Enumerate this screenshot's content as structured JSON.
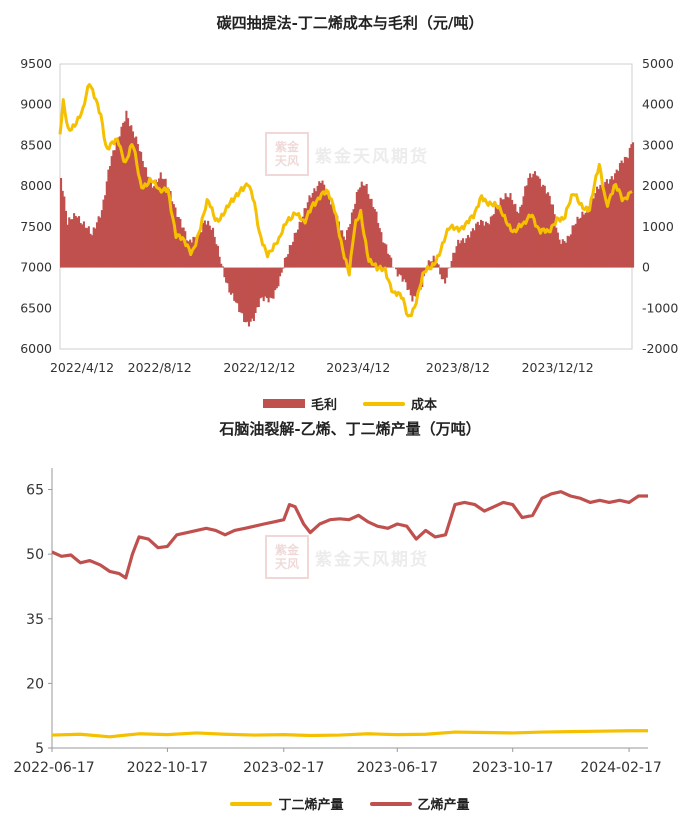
{
  "watermark": {
    "seal": "紫金天风",
    "text": "紫金天风期货"
  },
  "chart_data": [
    {
      "type": "bar+line",
      "title": "碳四抽提法-丁二烯成本与毛利（元/吨）",
      "x_ticks": [
        "2022/4/12",
        "2022/8/12",
        "2022/12/12",
        "2023/4/12",
        "2023/8/12",
        "2023/12/12"
      ],
      "x_range": [
        "2022-04-12",
        "2024-03-12"
      ],
      "left_axis": {
        "ylim": [
          6000,
          9500
        ],
        "ticks": [
          6000,
          6500,
          7000,
          7500,
          8000,
          8500,
          9000,
          9500
        ]
      },
      "right_axis": {
        "ylim": [
          -2000,
          5000
        ],
        "ticks": [
          -2000,
          -1000,
          0,
          1000,
          2000,
          3000,
          4000,
          5000
        ]
      },
      "legend": [
        "毛利",
        "成本"
      ],
      "series": [
        {
          "name": "毛利",
          "type": "bar",
          "axis": "right",
          "color": "#c0504d",
          "points": [
            [
              "2022-04-12",
              2200
            ],
            [
              "2022-04-20",
              1000
            ],
            [
              "2022-05-01",
              1400
            ],
            [
              "2022-05-10",
              1100
            ],
            [
              "2022-05-20",
              700
            ],
            [
              "2022-06-01",
              1500
            ],
            [
              "2022-06-10",
              2500
            ],
            [
              "2022-06-20",
              3000
            ],
            [
              "2022-07-01",
              3900
            ],
            [
              "2022-07-10",
              3300
            ],
            [
              "2022-07-20",
              2600
            ],
            [
              "2022-08-01",
              2100
            ],
            [
              "2022-08-12",
              2200
            ],
            [
              "2022-08-25",
              1800
            ],
            [
              "2022-09-05",
              1200
            ],
            [
              "2022-09-15",
              500
            ],
            [
              "2022-09-25",
              800
            ],
            [
              "2022-10-05",
              1200
            ],
            [
              "2022-10-15",
              800
            ],
            [
              "2022-10-25",
              200
            ],
            [
              "2022-11-05",
              -600
            ],
            [
              "2022-11-15",
              -1100
            ],
            [
              "2022-11-25",
              -1300
            ],
            [
              "2022-12-05",
              -1200
            ],
            [
              "2022-12-12",
              -900
            ],
            [
              "2022-12-25",
              -700
            ],
            [
              "2023-01-05",
              -300
            ],
            [
              "2023-01-15",
              300
            ],
            [
              "2023-01-25",
              1000
            ],
            [
              "2023-02-05",
              1400
            ],
            [
              "2023-02-15",
              1800
            ],
            [
              "2023-02-25",
              2300
            ],
            [
              "2023-03-05",
              1700
            ],
            [
              "2023-03-15",
              1200
            ],
            [
              "2023-03-25",
              800
            ],
            [
              "2023-04-05",
              1400
            ],
            [
              "2023-04-12",
              1900
            ],
            [
              "2023-04-20",
              2100
            ],
            [
              "2023-05-01",
              1500
            ],
            [
              "2023-05-10",
              600
            ],
            [
              "2023-05-20",
              300
            ],
            [
              "2023-06-01",
              -200
            ],
            [
              "2023-06-15",
              -800
            ],
            [
              "2023-06-25",
              -500
            ],
            [
              "2023-07-05",
              0
            ],
            [
              "2023-07-15",
              200
            ],
            [
              "2023-07-25",
              -300
            ],
            [
              "2023-08-05",
              200
            ],
            [
              "2023-08-12",
              600
            ],
            [
              "2023-08-25",
              900
            ],
            [
              "2023-09-05",
              1000
            ],
            [
              "2023-09-15",
              1100
            ],
            [
              "2023-09-25",
              1500
            ],
            [
              "2023-10-05",
              1600
            ],
            [
              "2023-10-15",
              1800
            ],
            [
              "2023-10-25",
              1400
            ],
            [
              "2023-11-05",
              2100
            ],
            [
              "2023-11-15",
              2400
            ],
            [
              "2023-11-25",
              2000
            ],
            [
              "2023-12-05",
              1400
            ],
            [
              "2023-12-12",
              700
            ],
            [
              "2023-12-25",
              800
            ],
            [
              "2024-01-05",
              1100
            ],
            [
              "2024-01-15",
              1500
            ],
            [
              "2024-01-25",
              1800
            ],
            [
              "2024-02-05",
              2000
            ],
            [
              "2024-02-15",
              2300
            ],
            [
              "2024-02-25",
              2500
            ],
            [
              "2024-03-05",
              2600
            ],
            [
              "2024-03-12",
              3200
            ]
          ]
        },
        {
          "name": "成本",
          "type": "line",
          "axis": "left",
          "color": "#f5c000",
          "points": [
            [
              "2022-04-12",
              8600
            ],
            [
              "2022-04-16",
              9000
            ],
            [
              "2022-04-22",
              8700
            ],
            [
              "2022-05-01",
              8800
            ],
            [
              "2022-05-10",
              8900
            ],
            [
              "2022-05-18",
              9250
            ],
            [
              "2022-05-26",
              9100
            ],
            [
              "2022-06-01",
              8900
            ],
            [
              "2022-06-08",
              8400
            ],
            [
              "2022-06-15",
              8500
            ],
            [
              "2022-06-22",
              8600
            ],
            [
              "2022-07-01",
              8300
            ],
            [
              "2022-07-10",
              8500
            ],
            [
              "2022-07-20",
              8000
            ],
            [
              "2022-08-01",
              8100
            ],
            [
              "2022-08-12",
              7900
            ],
            [
              "2022-08-22",
              8000
            ],
            [
              "2022-09-01",
              7400
            ],
            [
              "2022-09-10",
              7300
            ],
            [
              "2022-09-20",
              7200
            ],
            [
              "2022-10-01",
              7500
            ],
            [
              "2022-10-10",
              7800
            ],
            [
              "2022-10-20",
              7600
            ],
            [
              "2022-11-01",
              7700
            ],
            [
              "2022-11-10",
              7800
            ],
            [
              "2022-11-20",
              8000
            ],
            [
              "2022-11-28",
              8050
            ],
            [
              "2022-12-05",
              7800
            ],
            [
              "2022-12-12",
              7400
            ],
            [
              "2022-12-22",
              7200
            ],
            [
              "2023-01-05",
              7300
            ],
            [
              "2023-01-15",
              7600
            ],
            [
              "2023-01-25",
              7700
            ],
            [
              "2023-02-05",
              7500
            ],
            [
              "2023-02-15",
              7800
            ],
            [
              "2023-02-25",
              7900
            ],
            [
              "2023-03-05",
              7900
            ],
            [
              "2023-03-15",
              7700
            ],
            [
              "2023-03-25",
              7200
            ],
            [
              "2023-04-01",
              6900
            ],
            [
              "2023-04-08",
              7500
            ],
            [
              "2023-04-15",
              7700
            ],
            [
              "2023-04-25",
              7100
            ],
            [
              "2023-05-05",
              6950
            ],
            [
              "2023-05-15",
              7000
            ],
            [
              "2023-05-25",
              6700
            ],
            [
              "2023-06-05",
              6600
            ],
            [
              "2023-06-12",
              6400
            ],
            [
              "2023-06-20",
              6550
            ],
            [
              "2023-07-01",
              6900
            ],
            [
              "2023-07-10",
              7000
            ],
            [
              "2023-07-20",
              7200
            ],
            [
              "2023-08-01",
              7450
            ],
            [
              "2023-08-12",
              7500
            ],
            [
              "2023-08-22",
              7550
            ],
            [
              "2023-09-01",
              7600
            ],
            [
              "2023-09-10",
              7900
            ],
            [
              "2023-09-20",
              7800
            ],
            [
              "2023-10-01",
              7700
            ],
            [
              "2023-10-10",
              7600
            ],
            [
              "2023-10-20",
              7450
            ],
            [
              "2023-11-01",
              7500
            ],
            [
              "2023-11-10",
              7700
            ],
            [
              "2023-11-20",
              7450
            ],
            [
              "2023-12-01",
              7400
            ],
            [
              "2023-12-12",
              7650
            ],
            [
              "2023-12-20",
              7600
            ],
            [
              "2024-01-01",
              7900
            ],
            [
              "2024-01-10",
              7800
            ],
            [
              "2024-01-20",
              7700
            ],
            [
              "2024-02-01",
              8250
            ],
            [
              "2024-02-10",
              7800
            ],
            [
              "2024-02-20",
              8000
            ],
            [
              "2024-03-01",
              7800
            ],
            [
              "2024-03-12",
              8000
            ]
          ]
        }
      ]
    },
    {
      "type": "line",
      "title": "石脑油裂解-乙烯、丁二烯产量（万吨）",
      "x_ticks": [
        "2022-06-17",
        "2022-10-17",
        "2023-02-17",
        "2023-06-17",
        "2023-10-17",
        "2024-02-17"
      ],
      "x_range": [
        "2022-06-17",
        "2024-03-08"
      ],
      "ylim": [
        5,
        70
      ],
      "y_ticks": [
        5,
        20,
        35,
        50,
        65
      ],
      "legend": [
        "丁二烯产量",
        "乙烯产量"
      ],
      "series": [
        {
          "name": "乙烯产量",
          "color": "#c0504d",
          "points": [
            [
              "2022-06-17",
              50.5
            ],
            [
              "2022-06-27",
              49.5
            ],
            [
              "2022-07-07",
              49.8
            ],
            [
              "2022-07-17",
              48.0
            ],
            [
              "2022-07-27",
              48.5
            ],
            [
              "2022-08-07",
              47.5
            ],
            [
              "2022-08-17",
              46.0
            ],
            [
              "2022-08-27",
              45.5
            ],
            [
              "2022-09-03",
              44.5
            ],
            [
              "2022-09-10",
              50.0
            ],
            [
              "2022-09-17",
              54.0
            ],
            [
              "2022-09-27",
              53.5
            ],
            [
              "2022-10-07",
              51.5
            ],
            [
              "2022-10-17",
              51.8
            ],
            [
              "2022-10-27",
              54.5
            ],
            [
              "2022-11-07",
              55.0
            ],
            [
              "2022-11-17",
              55.5
            ],
            [
              "2022-11-27",
              56.0
            ],
            [
              "2022-12-07",
              55.5
            ],
            [
              "2022-12-17",
              54.5
            ],
            [
              "2022-12-27",
              55.5
            ],
            [
              "2023-01-07",
              56.0
            ],
            [
              "2023-01-17",
              56.5
            ],
            [
              "2023-01-27",
              57.0
            ],
            [
              "2023-02-07",
              57.5
            ],
            [
              "2023-02-17",
              58.0
            ],
            [
              "2023-02-23",
              61.5
            ],
            [
              "2023-03-01",
              61.0
            ],
            [
              "2023-03-10",
              57.0
            ],
            [
              "2023-03-17",
              55.0
            ],
            [
              "2023-03-27",
              57.0
            ],
            [
              "2023-04-07",
              58.0
            ],
            [
              "2023-04-17",
              58.2
            ],
            [
              "2023-04-27",
              58.0
            ],
            [
              "2023-05-07",
              59.0
            ],
            [
              "2023-05-17",
              57.5
            ],
            [
              "2023-05-27",
              56.5
            ],
            [
              "2023-06-07",
              56.0
            ],
            [
              "2023-06-17",
              57.0
            ],
            [
              "2023-06-27",
              56.5
            ],
            [
              "2023-07-07",
              53.5
            ],
            [
              "2023-07-17",
              55.5
            ],
            [
              "2023-07-27",
              54.0
            ],
            [
              "2023-08-07",
              54.5
            ],
            [
              "2023-08-17",
              61.5
            ],
            [
              "2023-08-27",
              62.0
            ],
            [
              "2023-09-07",
              61.5
            ],
            [
              "2023-09-17",
              60.0
            ],
            [
              "2023-09-27",
              61.0
            ],
            [
              "2023-10-07",
              62.0
            ],
            [
              "2023-10-17",
              61.5
            ],
            [
              "2023-10-27",
              58.5
            ],
            [
              "2023-11-07",
              59.0
            ],
            [
              "2023-11-17",
              63.0
            ],
            [
              "2023-11-27",
              64.0
            ],
            [
              "2023-12-07",
              64.5
            ],
            [
              "2023-12-17",
              63.5
            ],
            [
              "2023-12-27",
              63.0
            ],
            [
              "2024-01-07",
              62.0
            ],
            [
              "2024-01-17",
              62.5
            ],
            [
              "2024-01-27",
              62.0
            ],
            [
              "2024-02-07",
              62.5
            ],
            [
              "2024-02-17",
              62.0
            ],
            [
              "2024-02-27",
              63.5
            ],
            [
              "2024-03-08",
              63.5
            ]
          ]
        },
        {
          "name": "丁二烯产量",
          "color": "#f5c000",
          "points": [
            [
              "2022-06-17",
              8.0
            ],
            [
              "2022-07-17",
              8.2
            ],
            [
              "2022-08-17",
              7.6
            ],
            [
              "2022-09-17",
              8.3
            ],
            [
              "2022-10-17",
              8.1
            ],
            [
              "2022-11-17",
              8.5
            ],
            [
              "2022-12-17",
              8.2
            ],
            [
              "2023-01-17",
              8.0
            ],
            [
              "2023-02-17",
              8.1
            ],
            [
              "2023-03-17",
              7.9
            ],
            [
              "2023-04-17",
              8.0
            ],
            [
              "2023-05-17",
              8.3
            ],
            [
              "2023-06-17",
              8.1
            ],
            [
              "2023-07-17",
              8.2
            ],
            [
              "2023-08-17",
              8.7
            ],
            [
              "2023-09-17",
              8.6
            ],
            [
              "2023-10-17",
              8.5
            ],
            [
              "2023-11-17",
              8.7
            ],
            [
              "2023-12-17",
              8.8
            ],
            [
              "2024-01-17",
              8.9
            ],
            [
              "2024-02-17",
              9.0
            ],
            [
              "2024-03-08",
              9.0
            ]
          ]
        }
      ]
    }
  ]
}
